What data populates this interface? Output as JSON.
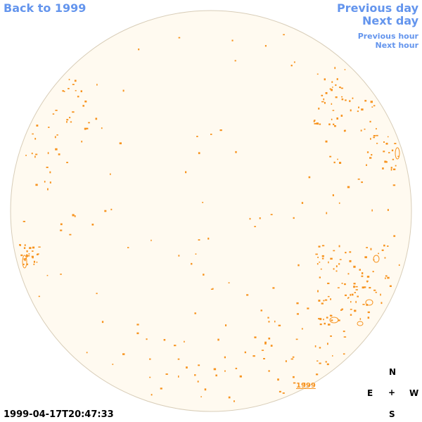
{
  "nav": {
    "back": "Back to 1999",
    "previous_day": "Previous day",
    "next_day": "Next day",
    "previous_hour": "Previous hour",
    "next_hour": "Next hour"
  },
  "timestamp": "1999-04-17T20:47:33",
  "year_label": "1999",
  "compass": {
    "north": "N",
    "east": "E",
    "center": "+",
    "west": "W",
    "south": "S"
  },
  "colors": {
    "link": "#6495ED",
    "disk_fill": "#fffaf0",
    "disk_edge": "#d8cdb8",
    "contour": "#f7931e"
  }
}
